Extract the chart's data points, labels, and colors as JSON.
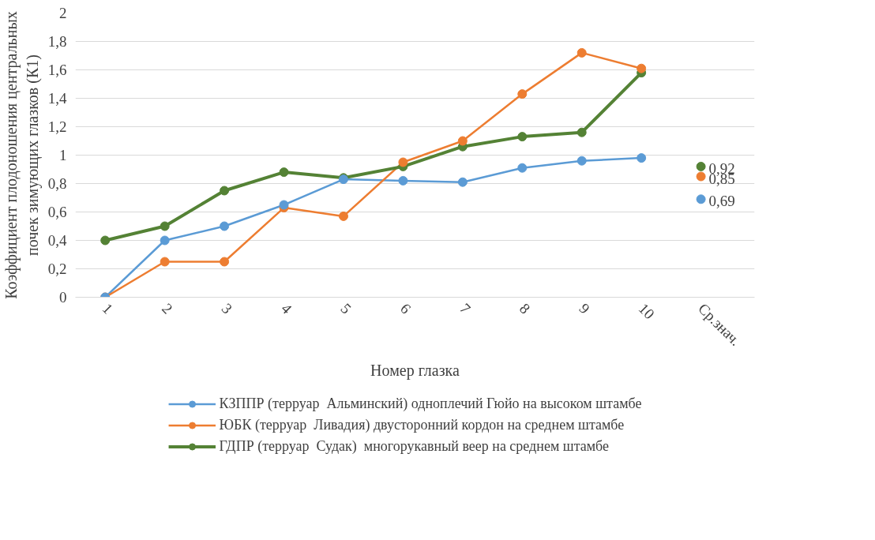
{
  "chart_data": {
    "type": "line",
    "xlabel": "Номер глазка",
    "ylabel": "Коэффициент плодоношения центральных почек зимующих глазков (К1)",
    "categories": [
      "1",
      "2",
      "3",
      "4",
      "5",
      "6",
      "7",
      "8",
      "9",
      "10",
      "Ср.знач."
    ],
    "series": [
      {
        "name": "КЗППР (терруар  Альминский) одноплечий Гюйо на высоком штамбе",
        "color": "#5b9bd5",
        "values": [
          0,
          0.4,
          0.5,
          0.65,
          0.83,
          0.82,
          0.81,
          0.91,
          0.96,
          0.98,
          null
        ]
      },
      {
        "name": "ЮБК (терруар  Ливадия) двусторонний кордон на среднем штамбе",
        "color": "#ed7d31",
        "values": [
          0,
          0.25,
          0.25,
          0.63,
          0.57,
          0.95,
          1.1,
          1.43,
          1.72,
          1.61,
          null
        ]
      },
      {
        "name": "ГДПР (терруар  Судак)  многорукавный веер на среднем штамбе",
        "color": "#548235",
        "values": [
          0.4,
          0.5,
          0.75,
          0.88,
          0.84,
          0.92,
          1.06,
          1.13,
          1.16,
          1.58,
          null
        ]
      },
      {
        "type": "scatter",
        "color": "#5b9bd5",
        "x": [
          "Ср.знач."
        ],
        "values": [
          0.69
        ],
        "value_labels": [
          "0,69"
        ]
      },
      {
        "type": "scatter",
        "color": "#ed7d31",
        "x": [
          "Ср.знач."
        ],
        "values": [
          0.85
        ],
        "value_labels": [
          "0,85"
        ]
      },
      {
        "type": "scatter",
        "color": "#548235",
        "x": [
          "Ср.знач."
        ],
        "values": [
          0.92
        ],
        "value_labels": [
          "0,92"
        ]
      }
    ],
    "ylim": [
      0,
      2
    ],
    "yticks": [
      0,
      {
        "value": 0.2,
        "label": "0,2"
      },
      {
        "value": 0.4,
        "label": "0,4"
      },
      {
        "value": 0.6,
        "label": "0,6"
      },
      {
        "value": 0.8,
        "label": "0,8"
      },
      1,
      {
        "value": 1.2,
        "label": "1,2"
      },
      {
        "value": 1.4,
        "label": "1,4"
      },
      {
        "value": 1.6,
        "label": "1,6"
      },
      {
        "value": 1.8,
        "label": "1,8"
      },
      2
    ],
    "grid": "y",
    "legend": "bottom",
    "marker": "circle",
    "line_style": "solid"
  }
}
